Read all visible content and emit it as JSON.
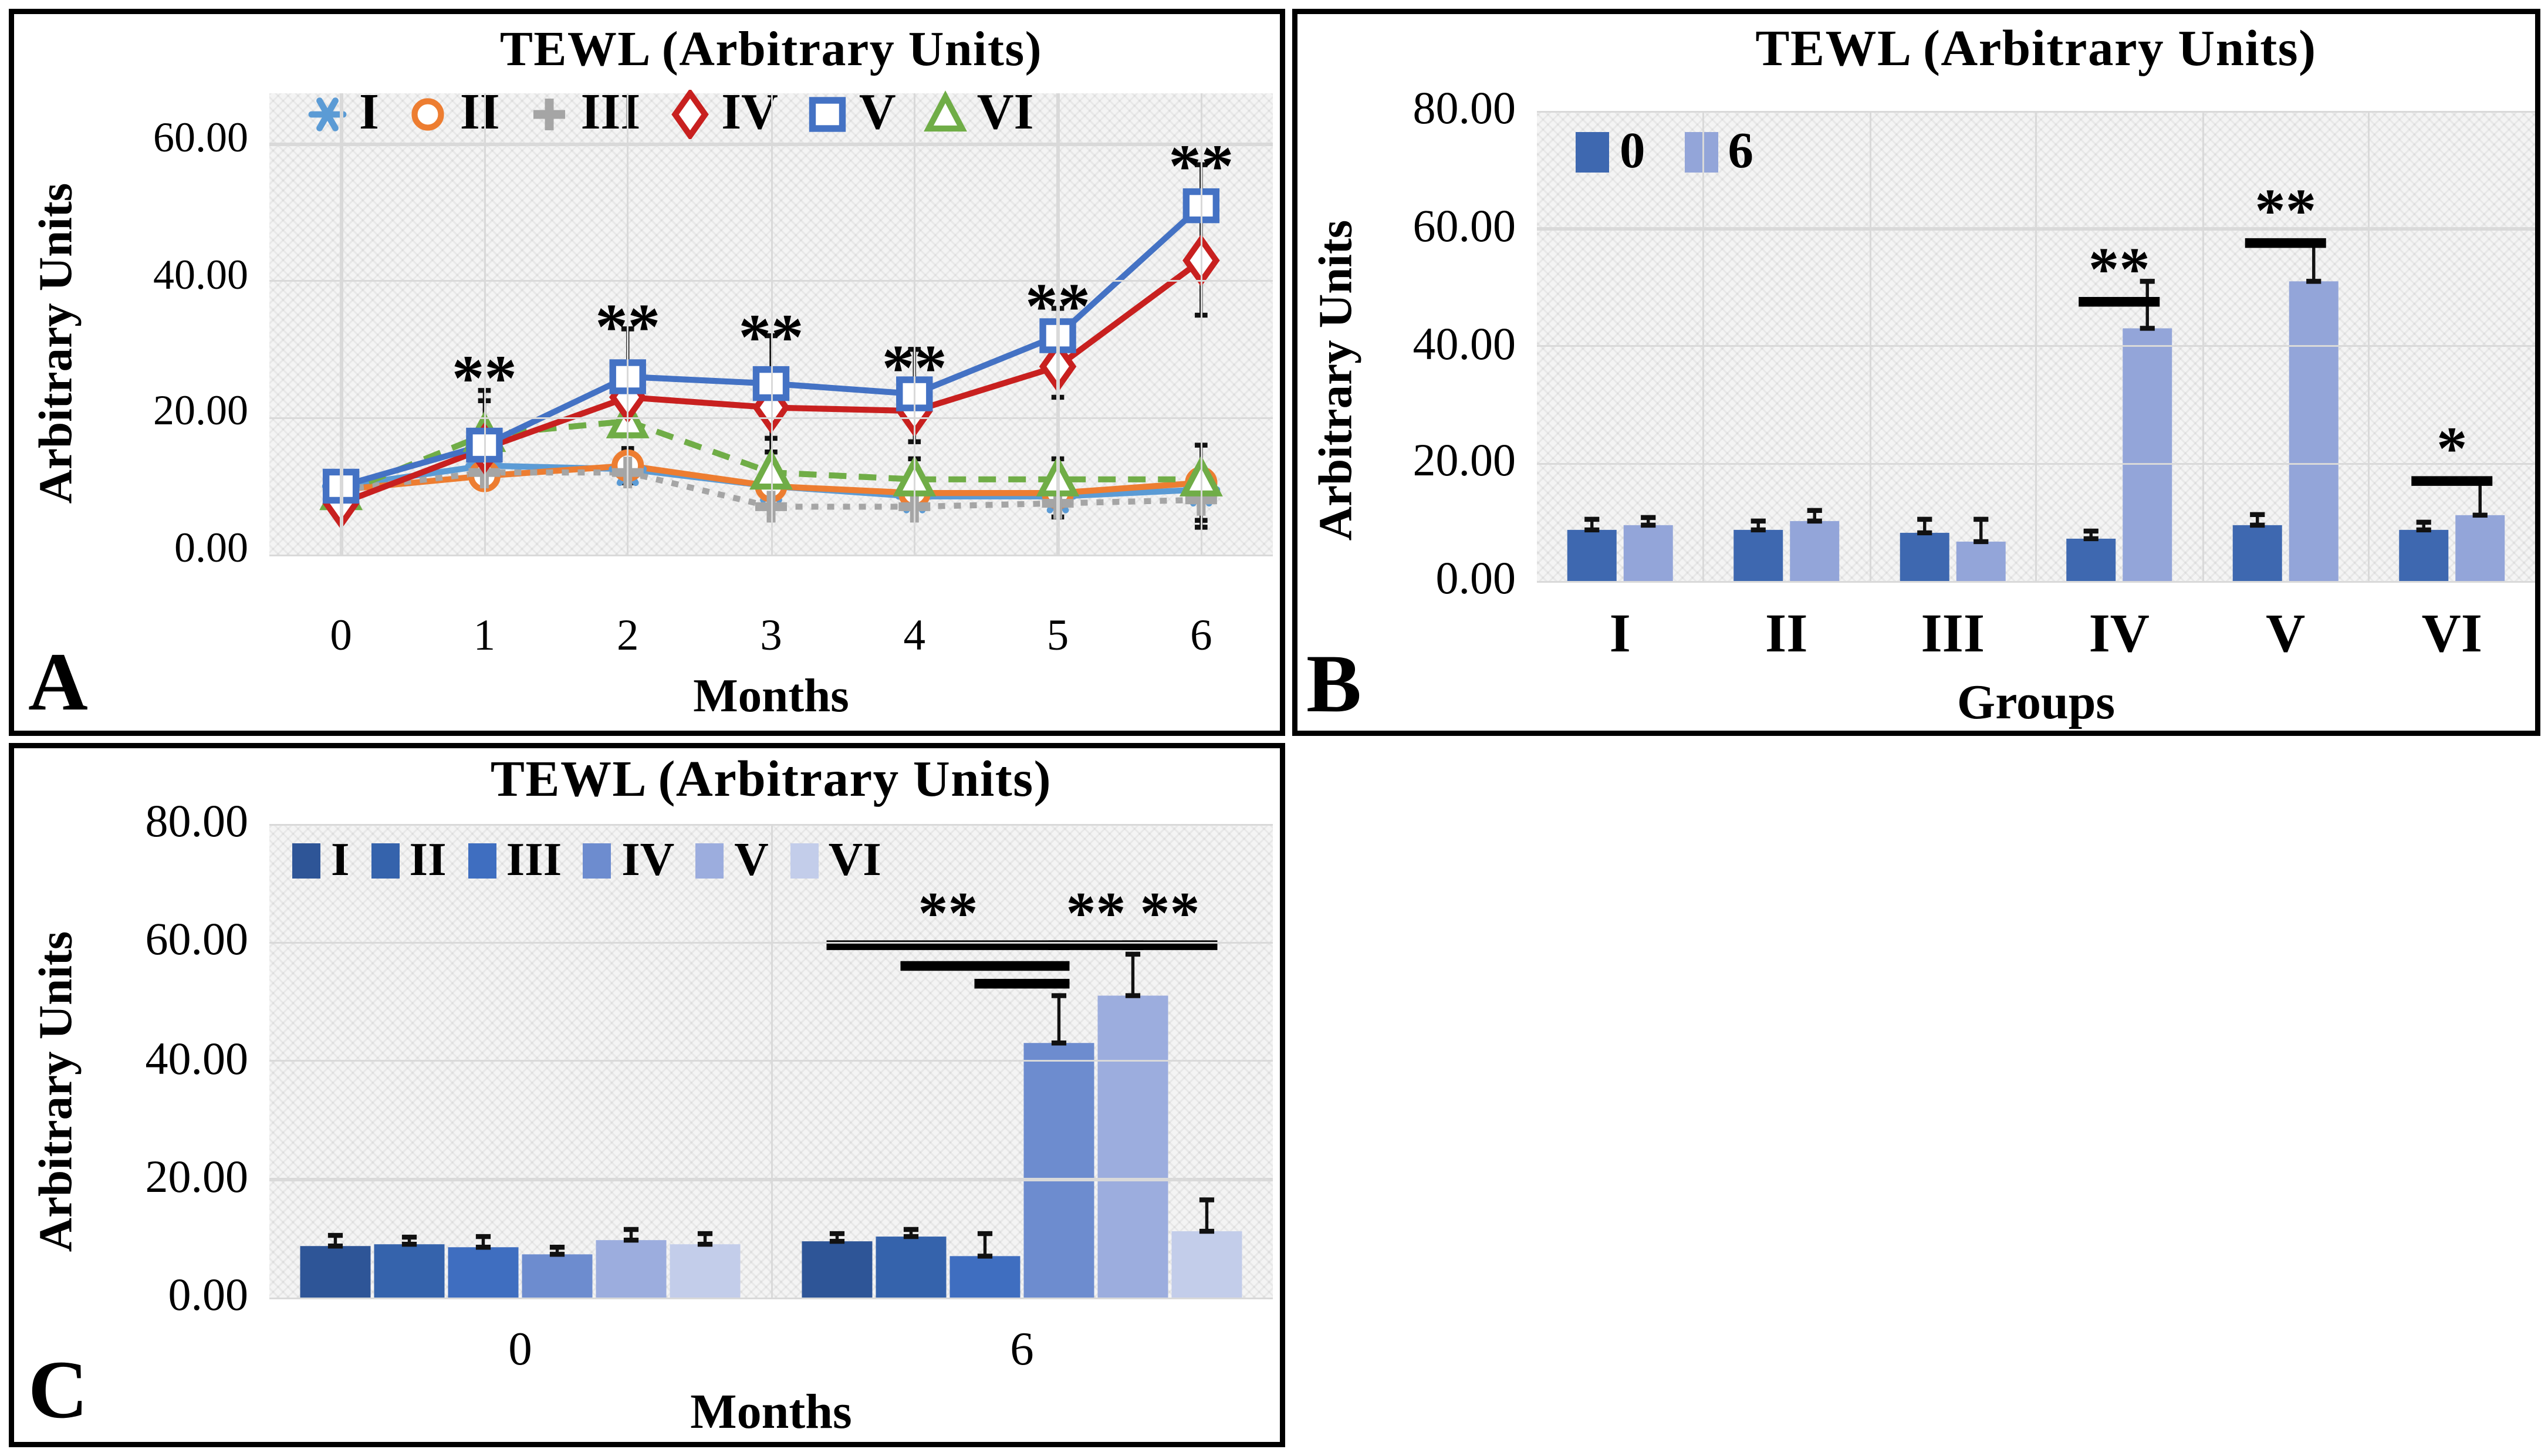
{
  "figure_title": "TEWL figure with three panels",
  "chart_data": [
    {
      "panel": "A",
      "type": "line",
      "title": "TEWL (Arbitrary Units)",
      "y_axis_title": "Arbitrary Units",
      "x_axis_title": "Months",
      "panel_label": "A",
      "ylim": [
        0,
        63
      ],
      "grid": "on",
      "legend_position": "top-inside",
      "y_ticks": [
        "60.00",
        "40.00",
        "20.00",
        "0.00"
      ],
      "x_ticks": [
        "0",
        "1",
        "2",
        "3",
        "4",
        "5",
        "6"
      ],
      "series": [
        {
          "name": "I",
          "color": "#5B9BD5",
          "marker": "asterisk",
          "dash": "solid",
          "values": [
            10,
            13,
            12.5,
            10,
            8.5,
            8.5,
            9.5
          ],
          "err_up": [
            1.5,
            2,
            2,
            0,
            0,
            0,
            0
          ],
          "err_down": [
            0,
            0,
            0,
            0,
            0,
            0,
            0
          ]
        },
        {
          "name": "II",
          "color": "#ED7D31",
          "marker": "circle",
          "dash": "solid",
          "values": [
            9.5,
            11.5,
            13,
            10,
            9,
            9,
            10.5
          ],
          "err_up": [
            1,
            1.5,
            2.5,
            0,
            0,
            0,
            0
          ],
          "err_down": [
            0,
            0,
            2.5,
            0,
            0,
            0,
            0
          ]
        },
        {
          "name": "III",
          "color": "#A5A5A5",
          "marker": "plus",
          "dash": "dashed",
          "values": [
            9.5,
            12,
            12,
            7,
            7,
            7.5,
            8
          ],
          "err_up": [
            0,
            0,
            0,
            0,
            0,
            0,
            0
          ],
          "err_down": [
            0,
            2,
            0,
            0,
            0,
            2,
            4
          ]
        },
        {
          "name": "VI",
          "color": "#70AD47",
          "marker": "triangle",
          "dash": "dashed",
          "values": [
            9,
            17.5,
            19.5,
            12,
            11,
            11,
            11
          ],
          "err_up": [
            0,
            5,
            6.5,
            5,
            3,
            3,
            5
          ],
          "err_down": [
            0,
            0,
            0,
            0,
            0,
            0,
            6
          ]
        },
        {
          "name": "IV",
          "color": "#C8201F",
          "marker": "diamond",
          "dash": "solid",
          "values": [
            7.5,
            15.5,
            23,
            21.5,
            21,
            27.5,
            43
          ],
          "err_up": [
            1,
            0,
            0,
            0,
            0,
            0,
            0
          ],
          "err_down": [
            1.5,
            0,
            4.5,
            6.5,
            4.5,
            4.5,
            8
          ]
        },
        {
          "name": "V",
          "color": "#4472C4",
          "marker": "square",
          "dash": "solid",
          "values": [
            10,
            16,
            26,
            25,
            23.5,
            32,
            51
          ],
          "err_up": [
            1.5,
            8,
            7,
            7,
            6.5,
            4,
            6
          ],
          "err_down": [
            0,
            3,
            0,
            0,
            0,
            0,
            7
          ]
        }
      ],
      "legend_order": [
        "I",
        "II",
        "III",
        "IV",
        "V",
        "VI"
      ],
      "significance": [
        {
          "x": 1,
          "y": 27,
          "label": "**"
        },
        {
          "x": 2,
          "y": 34.5,
          "label": "**"
        },
        {
          "x": 3,
          "y": 33,
          "label": "**"
        },
        {
          "x": 4,
          "y": 28.5,
          "label": "**"
        },
        {
          "x": 5,
          "y": 37.5,
          "label": "**"
        },
        {
          "x": 6,
          "y": 58,
          "label": "**"
        }
      ]
    },
    {
      "panel": "B",
      "type": "bar",
      "title": "TEWL (Arbitrary Units)",
      "y_axis_title": "Arbitrary Units",
      "x_axis_title": "Groups",
      "panel_label": "B",
      "ylim": [
        0,
        80
      ],
      "grid": "on",
      "legend_position": "top-inside",
      "y_ticks": [
        "80.00",
        "60.00",
        "40.00",
        "20.00",
        "0.00"
      ],
      "categories": [
        "I",
        "II",
        "III",
        "IV",
        "V",
        "VI"
      ],
      "series": [
        {
          "name": "0",
          "color": "#3E68B0",
          "values": [
            8.7,
            8.7,
            8.2,
            7.2,
            9.5,
            8.7
          ],
          "err_up": [
            1.8,
            1.5,
            2.3,
            1.3,
            1.8,
            1.3
          ]
        },
        {
          "name": "6",
          "color": "#93A5D9",
          "values": [
            9.5,
            10.2,
            6.7,
            43,
            51,
            11.2
          ],
          "err_up": [
            1.3,
            1.8,
            3.8,
            8,
            6.5,
            5.5
          ]
        }
      ],
      "significance": [
        {
          "category": "IV",
          "category_index": 3,
          "bracket_y": 47.5,
          "label": "**"
        },
        {
          "category": "V",
          "category_index": 4,
          "bracket_y": 57.5,
          "label": "**"
        },
        {
          "category": "VI",
          "category_index": 5,
          "bracket_y": 17,
          "label": "*"
        }
      ]
    },
    {
      "panel": "C",
      "type": "bar",
      "title": "TEWL (Arbitrary Units)",
      "y_axis_title": "Arbitrary Units",
      "x_axis_title": "Months",
      "panel_label": "C",
      "ylim": [
        0,
        80
      ],
      "grid": "on",
      "legend_position": "top-inside",
      "y_ticks": [
        "80.00",
        "60.00",
        "40.00",
        "20.00",
        "0.00"
      ],
      "categories": [
        "0",
        "6"
      ],
      "series": [
        {
          "name": "I",
          "color": "#2E5597",
          "values": [
            8.7,
            9.5
          ],
          "err_up": [
            1.8,
            1.3
          ]
        },
        {
          "name": "II",
          "color": "#3563AC",
          "values": [
            9.0,
            10.3
          ],
          "err_up": [
            1.2,
            1.2
          ]
        },
        {
          "name": "III",
          "color": "#3F6EC0",
          "values": [
            8.5,
            7.0
          ],
          "err_up": [
            1.8,
            3.8
          ]
        },
        {
          "name": "IV",
          "color": "#6D8CCF",
          "values": [
            7.3,
            43
          ],
          "err_up": [
            1.2,
            8
          ]
        },
        {
          "name": "V",
          "color": "#9CADDE",
          "values": [
            9.7,
            51
          ],
          "err_up": [
            1.8,
            7
          ]
        },
        {
          "name": "VI",
          "color": "#C3CDEA",
          "values": [
            9.0,
            11.2
          ],
          "err_up": [
            1.8,
            5.3
          ]
        }
      ],
      "significance": [
        {
          "bracket_y": 59.5,
          "cluster": 1,
          "from_series": 0,
          "to_series": 3,
          "label": "**"
        },
        {
          "bracket_y": 56,
          "cluster": 1,
          "from_series": 1,
          "to_series": 3,
          "label": ""
        },
        {
          "bracket_y": 53,
          "cluster": 1,
          "from_series": 2,
          "to_series": 3,
          "label": ""
        },
        {
          "bracket_y": 59.5,
          "cluster": 1,
          "from_series": 3,
          "to_series": 4,
          "label": "**"
        },
        {
          "bracket_y": 59.5,
          "cluster": 1,
          "from_series": 4,
          "to_series": 5,
          "label": "**"
        }
      ]
    }
  ]
}
